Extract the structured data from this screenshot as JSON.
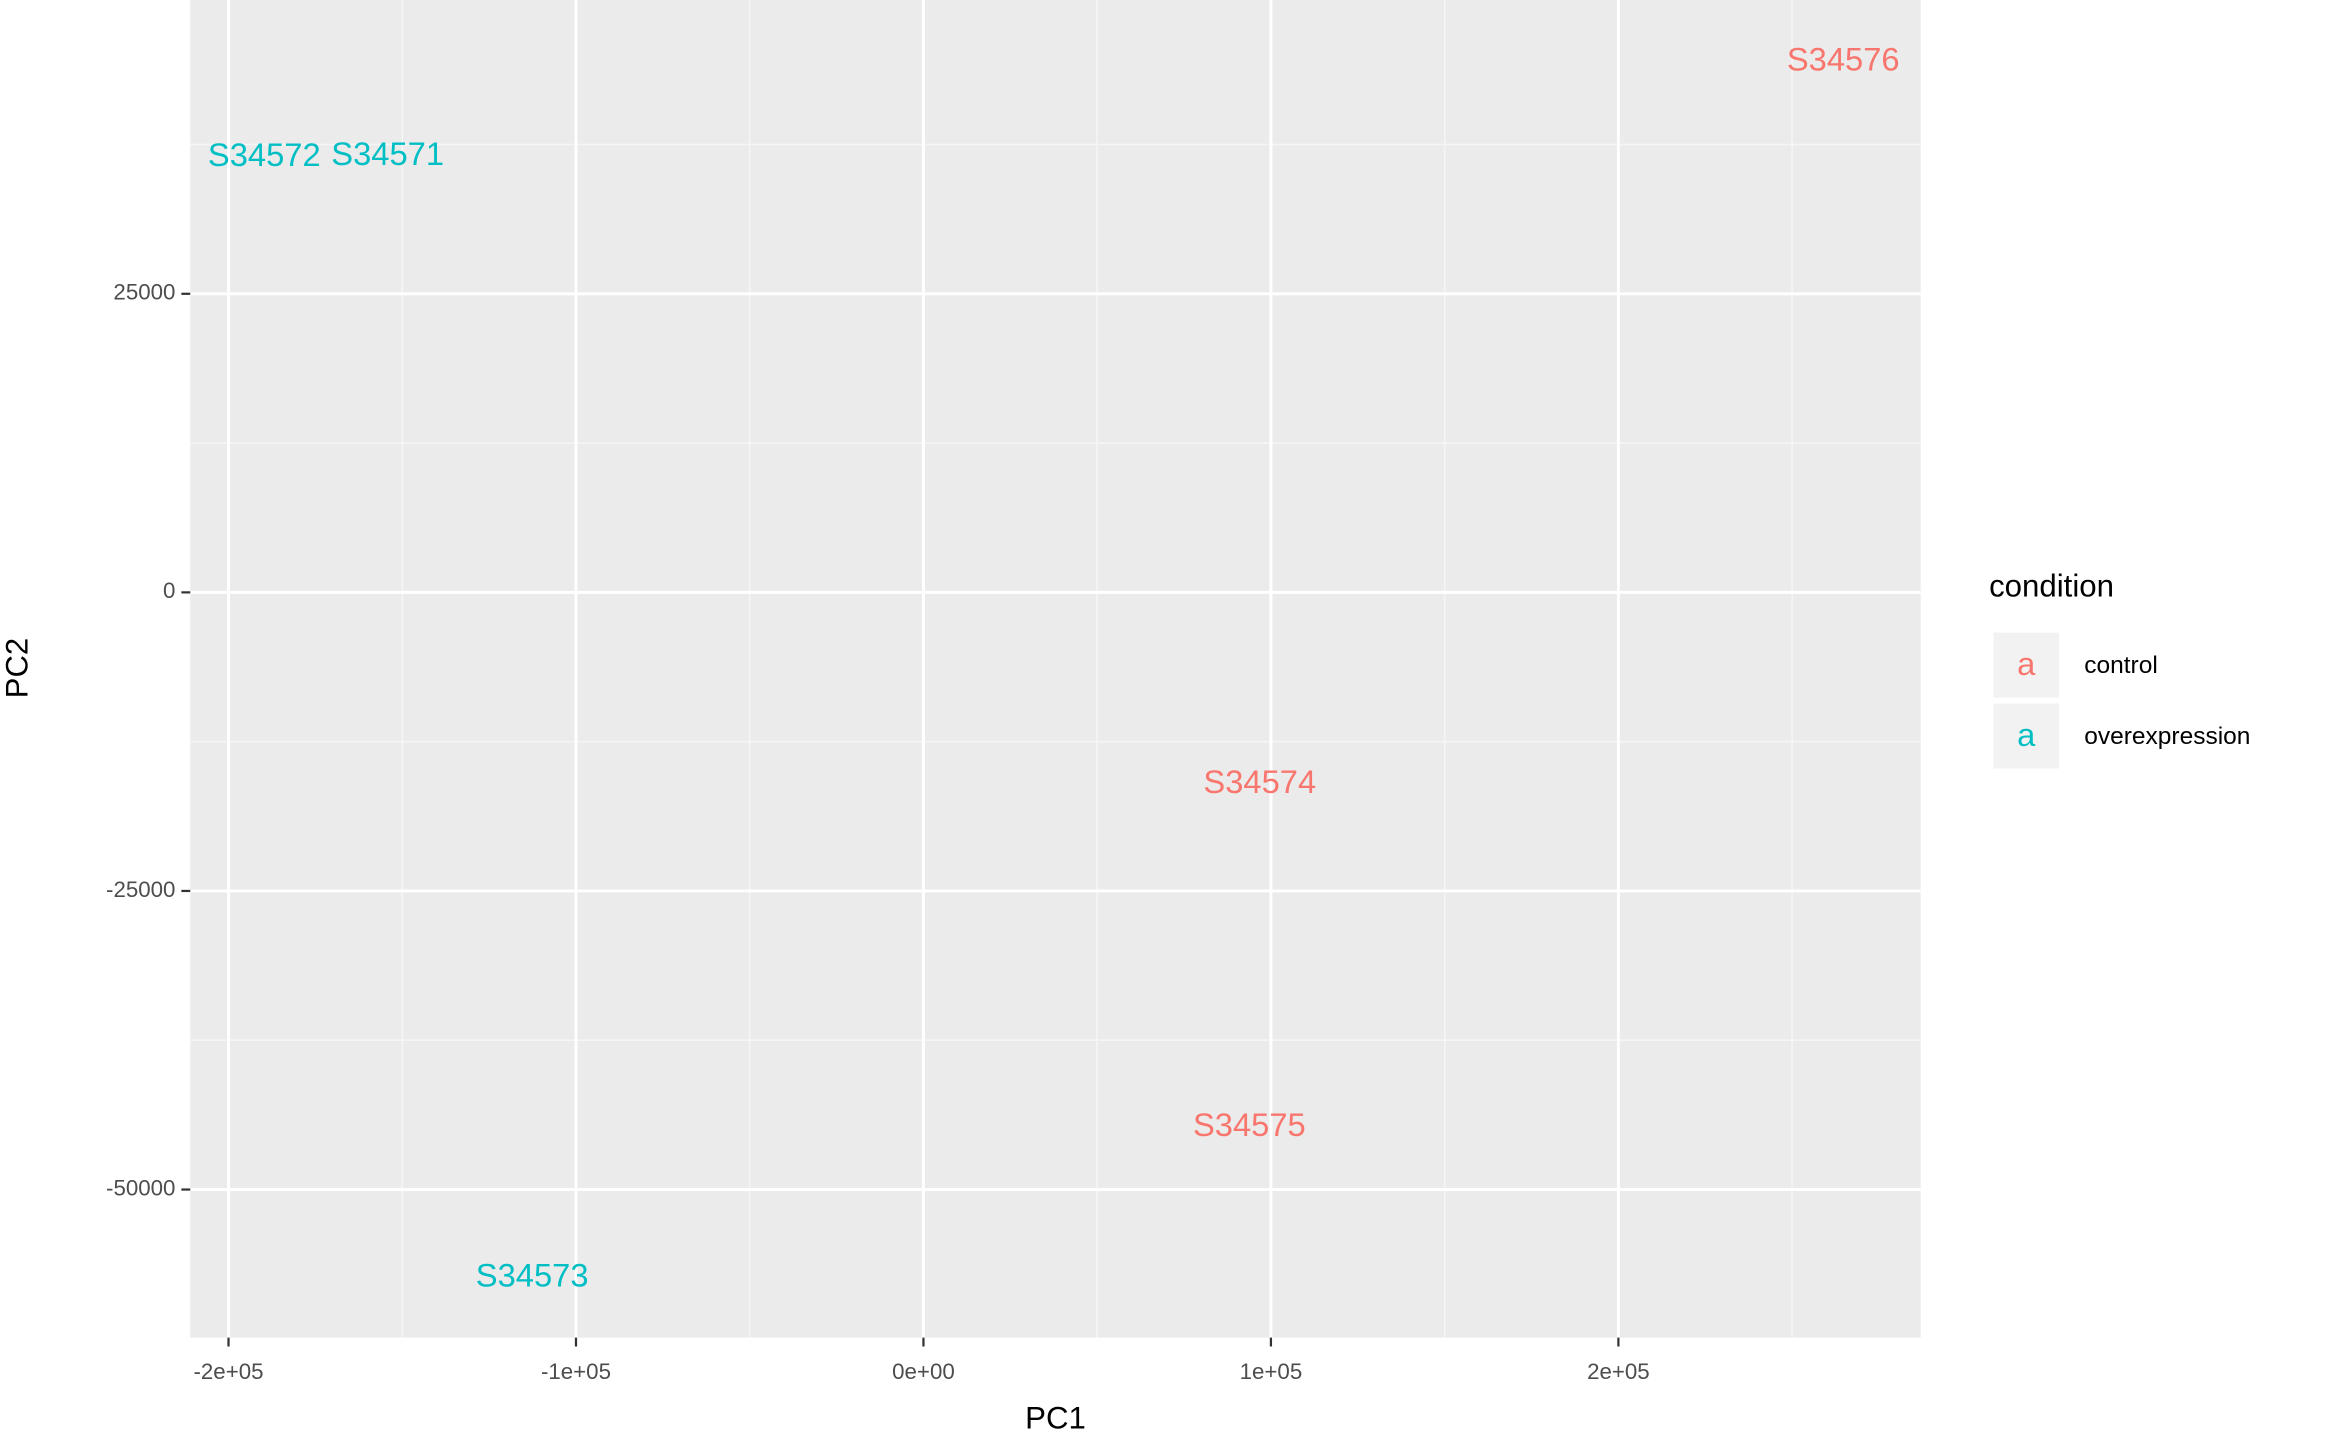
{
  "chart_data": {
    "type": "scatter",
    "x_label": "PC1",
    "y_label": "PC2",
    "legend_title": "condition",
    "legend_key_glyph": "a",
    "legend_position": "right",
    "grid": true,
    "xlim": [
      -211000,
      287000
    ],
    "ylim": [
      -62400,
      49600
    ],
    "xticks": [
      {
        "value": -200000,
        "label": "-2e+05"
      },
      {
        "value": -100000,
        "label": "-1e+05"
      },
      {
        "value": 0,
        "label": "0e+00"
      },
      {
        "value": 100000,
        "label": "1e+05"
      },
      {
        "value": 200000,
        "label": "2e+05"
      }
    ],
    "yticks": [
      -50000,
      -25000,
      0,
      25000
    ],
    "series": [
      {
        "name": "control",
        "color": "#F8766D",
        "labels": [
          "S34574",
          "S34575",
          "S34576"
        ],
        "x": [
          96800,
          93800,
          264700
        ],
        "values": [
          -16100,
          -44800,
          44400
        ]
      },
      {
        "name": "overexpression",
        "color": "#00BFC4",
        "labels": [
          "S34571",
          "S34572",
          "S34573"
        ],
        "x": [
          -154200,
          -189700,
          -112600
        ],
        "values": [
          36500,
          36400,
          -57400
        ]
      }
    ]
  }
}
